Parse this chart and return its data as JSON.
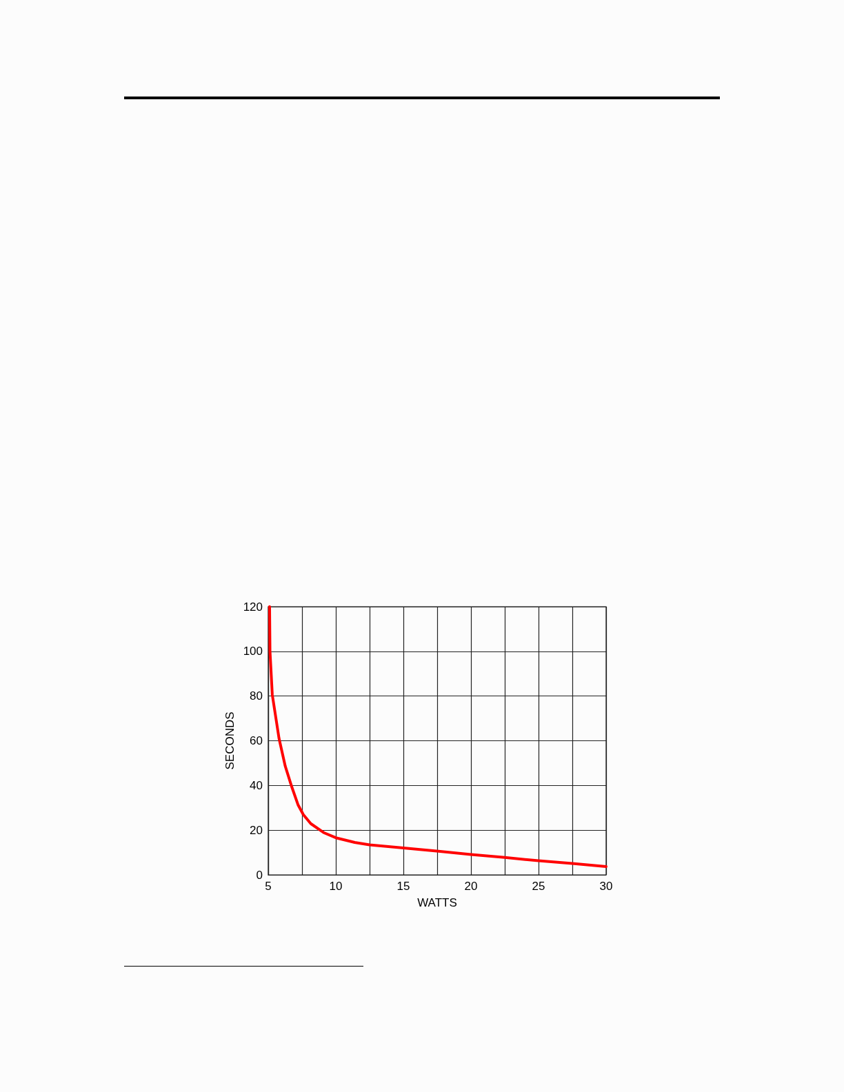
{
  "chart_data": {
    "type": "line",
    "xlabel": "WATTS",
    "ylabel": "SECONDS",
    "x": [
      5.1,
      5.13,
      5.3,
      5.8,
      6.26,
      6.74,
      7.2,
      7.6,
      8.15,
      9.1,
      10.0,
      11.4,
      12.5,
      15,
      17.6,
      20,
      22.5,
      25,
      27.5,
      30
    ],
    "series": [
      {
        "color": "#ff0000",
        "values": [
          120,
          100,
          80.6,
          61,
          48.6,
          39.4,
          31.4,
          26.9,
          22.9,
          18.9,
          16.6,
          14.5,
          13.4,
          12,
          10.6,
          9.1,
          7.8,
          6.3,
          5.1,
          3.7
        ]
      }
    ],
    "xlim": [
      5,
      30
    ],
    "xticks": [
      5,
      {
        "value": 7.5,
        "label": null
      },
      10,
      {
        "value": 12.5,
        "label": null
      },
      15,
      {
        "value": 17.5,
        "label": null
      },
      20,
      {
        "value": 22.5,
        "label": null
      },
      25,
      {
        "value": 27.5,
        "label": null
      },
      30
    ],
    "ylim": [
      0,
      120
    ],
    "yticks": [
      0,
      20,
      40,
      60,
      80,
      100,
      120
    ],
    "grid": true,
    "marker": "none",
    "line_style": "solid"
  }
}
